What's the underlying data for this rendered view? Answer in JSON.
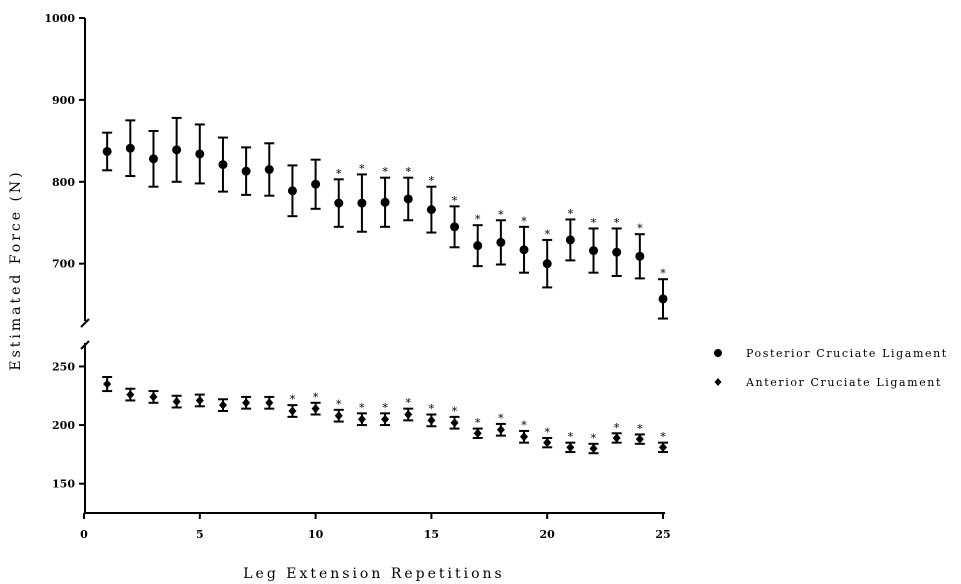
{
  "chart_data": {
    "type": "scatter",
    "xlabel": "Leg Extension Repetitions",
    "ylabel": "Estimated Force (N)",
    "x_ticks": [
      0,
      5,
      10,
      15,
      20,
      25
    ],
    "y_ticks_upper": [
      700,
      800,
      900,
      1000
    ],
    "y_ticks_lower": [
      150,
      200,
      250
    ],
    "xlim": [
      0,
      25
    ],
    "ylim_upper": [
      630,
      1000
    ],
    "ylim_lower": [
      125,
      270
    ],
    "axis_break": true,
    "grid": false,
    "legend_position": "right",
    "significance_marker": "*",
    "series": [
      {
        "name": "Posterior Cruciate Ligament",
        "marker": "circle",
        "x": [
          1,
          2,
          3,
          4,
          5,
          6,
          7,
          8,
          9,
          10,
          11,
          12,
          13,
          14,
          15,
          16,
          17,
          18,
          19,
          20,
          21,
          22,
          23,
          24,
          25
        ],
        "y": [
          837,
          841,
          828,
          839,
          834,
          821,
          813,
          815,
          789,
          797,
          774,
          774,
          775,
          779,
          766,
          745,
          722,
          726,
          717,
          700,
          729,
          716,
          714,
          709,
          657
        ],
        "err": [
          23,
          34,
          34,
          39,
          36,
          33,
          29,
          32,
          31,
          30,
          29,
          35,
          30,
          26,
          28,
          25,
          25,
          27,
          28,
          29,
          25,
          27,
          29,
          27,
          24
        ],
        "significant": [
          false,
          false,
          false,
          false,
          false,
          false,
          false,
          false,
          false,
          false,
          true,
          true,
          true,
          true,
          true,
          true,
          true,
          true,
          true,
          true,
          true,
          true,
          true,
          true,
          true
        ]
      },
      {
        "name": "Anterior Cruciate Ligament",
        "marker": "diamond",
        "x": [
          1,
          2,
          3,
          4,
          5,
          6,
          7,
          8,
          9,
          10,
          11,
          12,
          13,
          14,
          15,
          16,
          17,
          18,
          19,
          20,
          21,
          22,
          23,
          24,
          25
        ],
        "y": [
          235,
          226,
          224,
          220,
          221,
          217,
          219,
          219,
          212,
          214,
          208,
          205,
          205,
          209,
          204,
          202,
          193,
          196,
          190,
          185,
          181,
          180,
          189,
          188,
          181
        ],
        "err": [
          6,
          5,
          5,
          5,
          5,
          5,
          5,
          5,
          5,
          5,
          5,
          5,
          5,
          5,
          5,
          5,
          4,
          5,
          5,
          4,
          4,
          4,
          4,
          4,
          4
        ],
        "significant": [
          false,
          false,
          false,
          false,
          false,
          false,
          false,
          false,
          true,
          true,
          true,
          true,
          true,
          true,
          true,
          true,
          true,
          true,
          true,
          true,
          true,
          true,
          true,
          true,
          true
        ]
      }
    ]
  }
}
